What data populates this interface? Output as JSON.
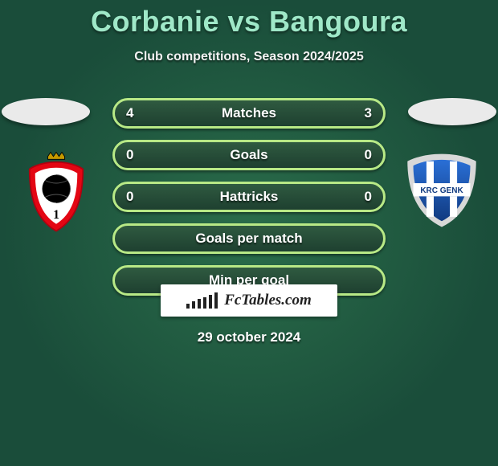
{
  "title": "Corbanie vs Bangoura",
  "subtitle": "Club competitions, Season 2024/2025",
  "date": "29 october 2024",
  "brand": "FcTables.com",
  "brand_bar_heights": [
    6,
    9,
    12,
    14,
    17,
    20
  ],
  "brand_bar_color": "#222222",
  "colors": {
    "title": "#9fe8c8",
    "pill_border": "#b8e986",
    "pill_bg_top": "#2f5a40",
    "pill_bg_bottom": "#1e4030",
    "text": "#ffffff",
    "page_bg_inner": "#2a6d4a",
    "page_bg_outer": "#1a4d3a",
    "ellipse_bg": "#eaeaea"
  },
  "rows": [
    {
      "label": "Matches",
      "left": "4",
      "right": "3"
    },
    {
      "label": "Goals",
      "left": "0",
      "right": "0"
    },
    {
      "label": "Hattricks",
      "left": "0",
      "right": "0"
    },
    {
      "label": "Goals per match",
      "left": "",
      "right": ""
    },
    {
      "label": "Min per goal",
      "left": "",
      "right": ""
    }
  ],
  "teams": {
    "left": {
      "name": "Royal Antwerp",
      "badge": {
        "outer_ring": "#e30613",
        "inner": "#ffffff",
        "ball": "#000000",
        "crown": "#000000",
        "number": "1",
        "ribbon": "#c49a00"
      }
    },
    "right": {
      "name": "KRC Genk",
      "badge": {
        "shield_border": "#c7c7c7",
        "shield_bg": "#1c4fa1",
        "white": "#ffffff",
        "text": "KRC GENK"
      }
    }
  }
}
